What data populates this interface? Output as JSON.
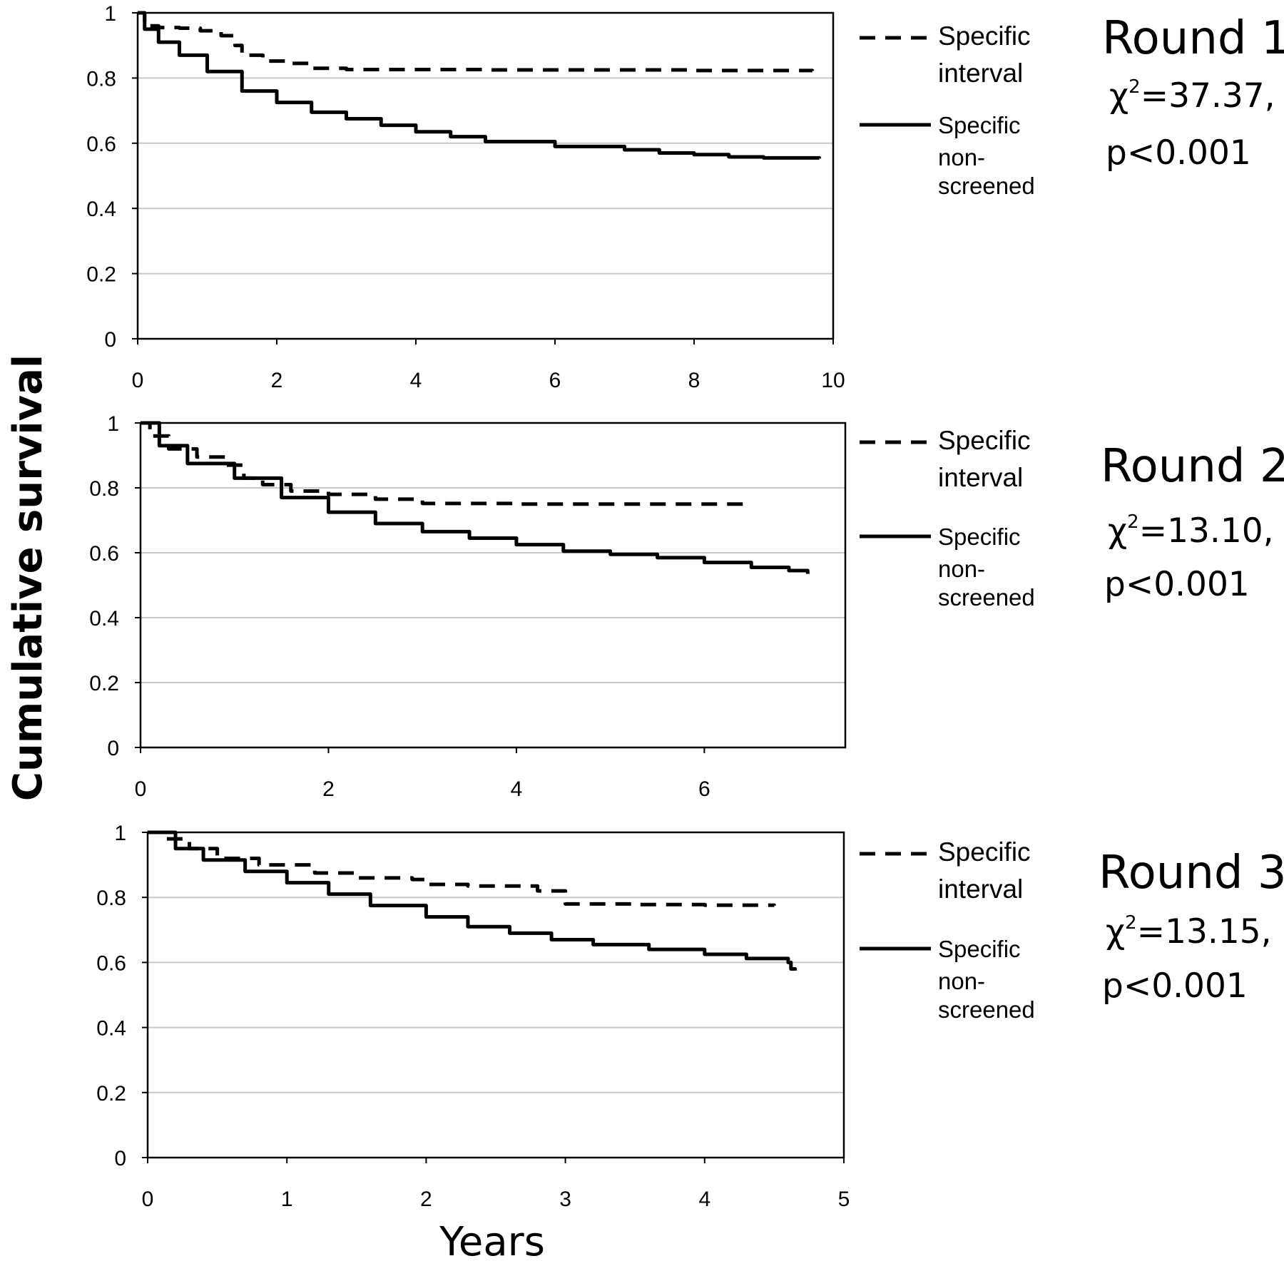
{
  "ylabel": "Cumulative survival",
  "xlabel": "Years",
  "chart_data": [
    {
      "type": "line",
      "title": "Round 1",
      "stat_chi": "χ",
      "stat_sup": "2",
      "stat_value": "=37.37,",
      "stat_p": "p<0.001",
      "xlim": [
        0,
        10
      ],
      "ylim": [
        0,
        1
      ],
      "x_ticks": [
        "0",
        "2",
        "4",
        "6",
        "8",
        "10"
      ],
      "y_ticks": [
        "0",
        "0.2",
        "0.4",
        "0.6",
        "0.8",
        "1"
      ],
      "grid": "horizontal",
      "legend_placement": "right",
      "series": [
        {
          "name": "Specific interval",
          "name_lines": [
            "Specific",
            "interval"
          ],
          "style": "dashed",
          "x": [
            0,
            0.1,
            0.3,
            0.6,
            0.9,
            1.2,
            1.4,
            1.5,
            1.8,
            2.2,
            2.5,
            3,
            4,
            5,
            6,
            8,
            9.7
          ],
          "y": [
            1,
            0.96,
            0.955,
            0.953,
            0.945,
            0.93,
            0.9,
            0.87,
            0.852,
            0.845,
            0.83,
            0.826,
            0.826,
            0.825,
            0.825,
            0.823,
            0.822
          ]
        },
        {
          "name": "Specific non-screened",
          "name_lines": [
            "Specific",
            "non-",
            "screened"
          ],
          "style": "solid",
          "x": [
            0,
            0.1,
            0.3,
            0.6,
            1,
            1.5,
            2,
            2.5,
            3,
            3.5,
            4,
            4.5,
            5,
            6,
            7,
            7.5,
            8,
            8.5,
            9,
            9.8
          ],
          "y": [
            1,
            0.95,
            0.91,
            0.87,
            0.82,
            0.76,
            0.725,
            0.695,
            0.675,
            0.655,
            0.635,
            0.62,
            0.605,
            0.59,
            0.58,
            0.57,
            0.565,
            0.558,
            0.555,
            0.553
          ]
        }
      ]
    },
    {
      "type": "line",
      "title": "Round 2",
      "stat_chi": "χ",
      "stat_sup": "2",
      "stat_value": "=13.10,",
      "stat_p": "p<0.001",
      "xlim": [
        0,
        7.5
      ],
      "ylim": [
        0,
        1
      ],
      "x_ticks": [
        "0",
        "2",
        "4",
        "6"
      ],
      "y_ticks": [
        "0",
        "0.2",
        "0.4",
        "0.6",
        "0.8",
        "1"
      ],
      "grid": "horizontal",
      "legend_placement": "right",
      "series": [
        {
          "name": "Specific interval",
          "name_lines": [
            "Specific",
            "interval"
          ],
          "style": "dashed",
          "x": [
            0,
            0.1,
            0.3,
            0.6,
            0.9,
            1.1,
            1.3,
            1.6,
            2,
            2.5,
            3,
            4,
            5,
            6.5
          ],
          "y": [
            1,
            0.96,
            0.92,
            0.895,
            0.87,
            0.83,
            0.81,
            0.79,
            0.78,
            0.765,
            0.752,
            0.75,
            0.75,
            0.748
          ]
        },
        {
          "name": "Specific non-screened",
          "name_lines": [
            "Specific",
            "non-",
            "screened"
          ],
          "style": "solid",
          "x": [
            0,
            0.2,
            0.5,
            1,
            1.5,
            2,
            2.5,
            3,
            3.5,
            4,
            4.5,
            5,
            5.5,
            6,
            6.5,
            6.9,
            7.1
          ],
          "y": [
            1,
            0.93,
            0.875,
            0.83,
            0.77,
            0.725,
            0.69,
            0.665,
            0.645,
            0.625,
            0.605,
            0.595,
            0.585,
            0.57,
            0.555,
            0.545,
            0.535
          ]
        }
      ]
    },
    {
      "type": "line",
      "title": "Round 3",
      "stat_chi": "χ",
      "stat_sup": "2",
      "stat_value": "=13.15,",
      "stat_p": "p<0.001",
      "xlim": [
        0,
        5
      ],
      "ylim": [
        0,
        1
      ],
      "x_ticks": [
        "0",
        "1",
        "2",
        "3",
        "4",
        "5"
      ],
      "y_ticks": [
        "0",
        "0.2",
        "0.4",
        "0.6",
        "0.8",
        "1"
      ],
      "grid": "horizontal",
      "legend_placement": "right",
      "series": [
        {
          "name": "Specific interval",
          "name_lines": [
            "Specific",
            "interval"
          ],
          "style": "dashed",
          "x": [
            0,
            0.1,
            0.3,
            0.5,
            0.8,
            1.2,
            1.5,
            1.9,
            2,
            2.3,
            2.8,
            3,
            3.5,
            4,
            4.5
          ],
          "y": [
            1,
            0.98,
            0.95,
            0.92,
            0.9,
            0.875,
            0.86,
            0.855,
            0.84,
            0.835,
            0.82,
            0.78,
            0.778,
            0.776,
            0.775
          ]
        },
        {
          "name": "Specific non-screened",
          "name_lines": [
            "Specific",
            "non-",
            "screened"
          ],
          "style": "solid",
          "x": [
            0,
            0.2,
            0.4,
            0.7,
            1,
            1.3,
            1.6,
            2,
            2.3,
            2.6,
            2.9,
            3.2,
            3.6,
            4,
            4.3,
            4.6,
            4.62,
            4.65
          ],
          "y": [
            1,
            0.95,
            0.915,
            0.88,
            0.845,
            0.81,
            0.775,
            0.74,
            0.71,
            0.69,
            0.67,
            0.655,
            0.64,
            0.625,
            0.612,
            0.6,
            0.58,
            0.575
          ]
        }
      ]
    }
  ]
}
